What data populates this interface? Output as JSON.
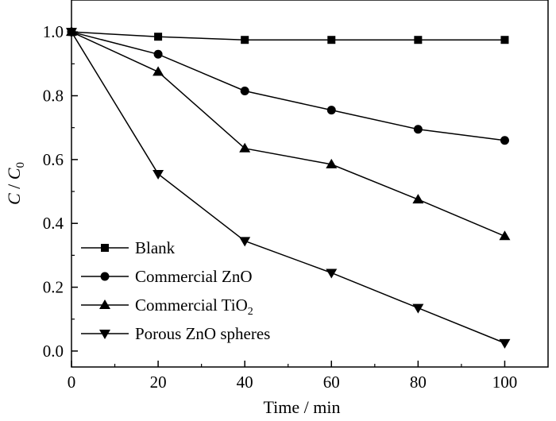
{
  "chart_data": {
    "type": "line",
    "xlabel": "Time / min",
    "ylabel": {
      "C": "C",
      "slash": " / ",
      "C0_base": "C",
      "C0_sub": "0"
    },
    "xlim": [
      0,
      110
    ],
    "ylim": [
      -0.05,
      1.1
    ],
    "xticks": [
      0,
      20,
      40,
      60,
      80,
      100
    ],
    "xtick_labels": [
      "0",
      "20",
      "40",
      "60",
      "80",
      "100"
    ],
    "yticks": [
      0.0,
      0.2,
      0.4,
      0.6,
      0.8,
      1.0
    ],
    "ytick_labels": [
      "0.0",
      "0.2",
      "0.4",
      "0.6",
      "0.8",
      "1.0"
    ],
    "grid": false,
    "legend_position": "bottom-left",
    "x": [
      0,
      20,
      40,
      60,
      80,
      100
    ],
    "series": [
      {
        "name": "Blank",
        "marker": "square",
        "values": [
          1.0,
          0.985,
          0.975,
          0.975,
          0.975,
          0.975
        ]
      },
      {
        "name": "Commercial ZnO",
        "marker": "circle",
        "values": [
          1.0,
          0.93,
          0.815,
          0.755,
          0.695,
          0.66
        ]
      },
      {
        "name": "Commercial TiO",
        "name_sub": "2",
        "marker": "triangle-up",
        "values": [
          1.0,
          0.875,
          0.635,
          0.585,
          0.475,
          0.36
        ]
      },
      {
        "name": "Porous ZnO spheres",
        "marker": "triangle-down",
        "values": [
          1.0,
          0.555,
          0.345,
          0.245,
          0.135,
          0.025
        ]
      }
    ]
  }
}
